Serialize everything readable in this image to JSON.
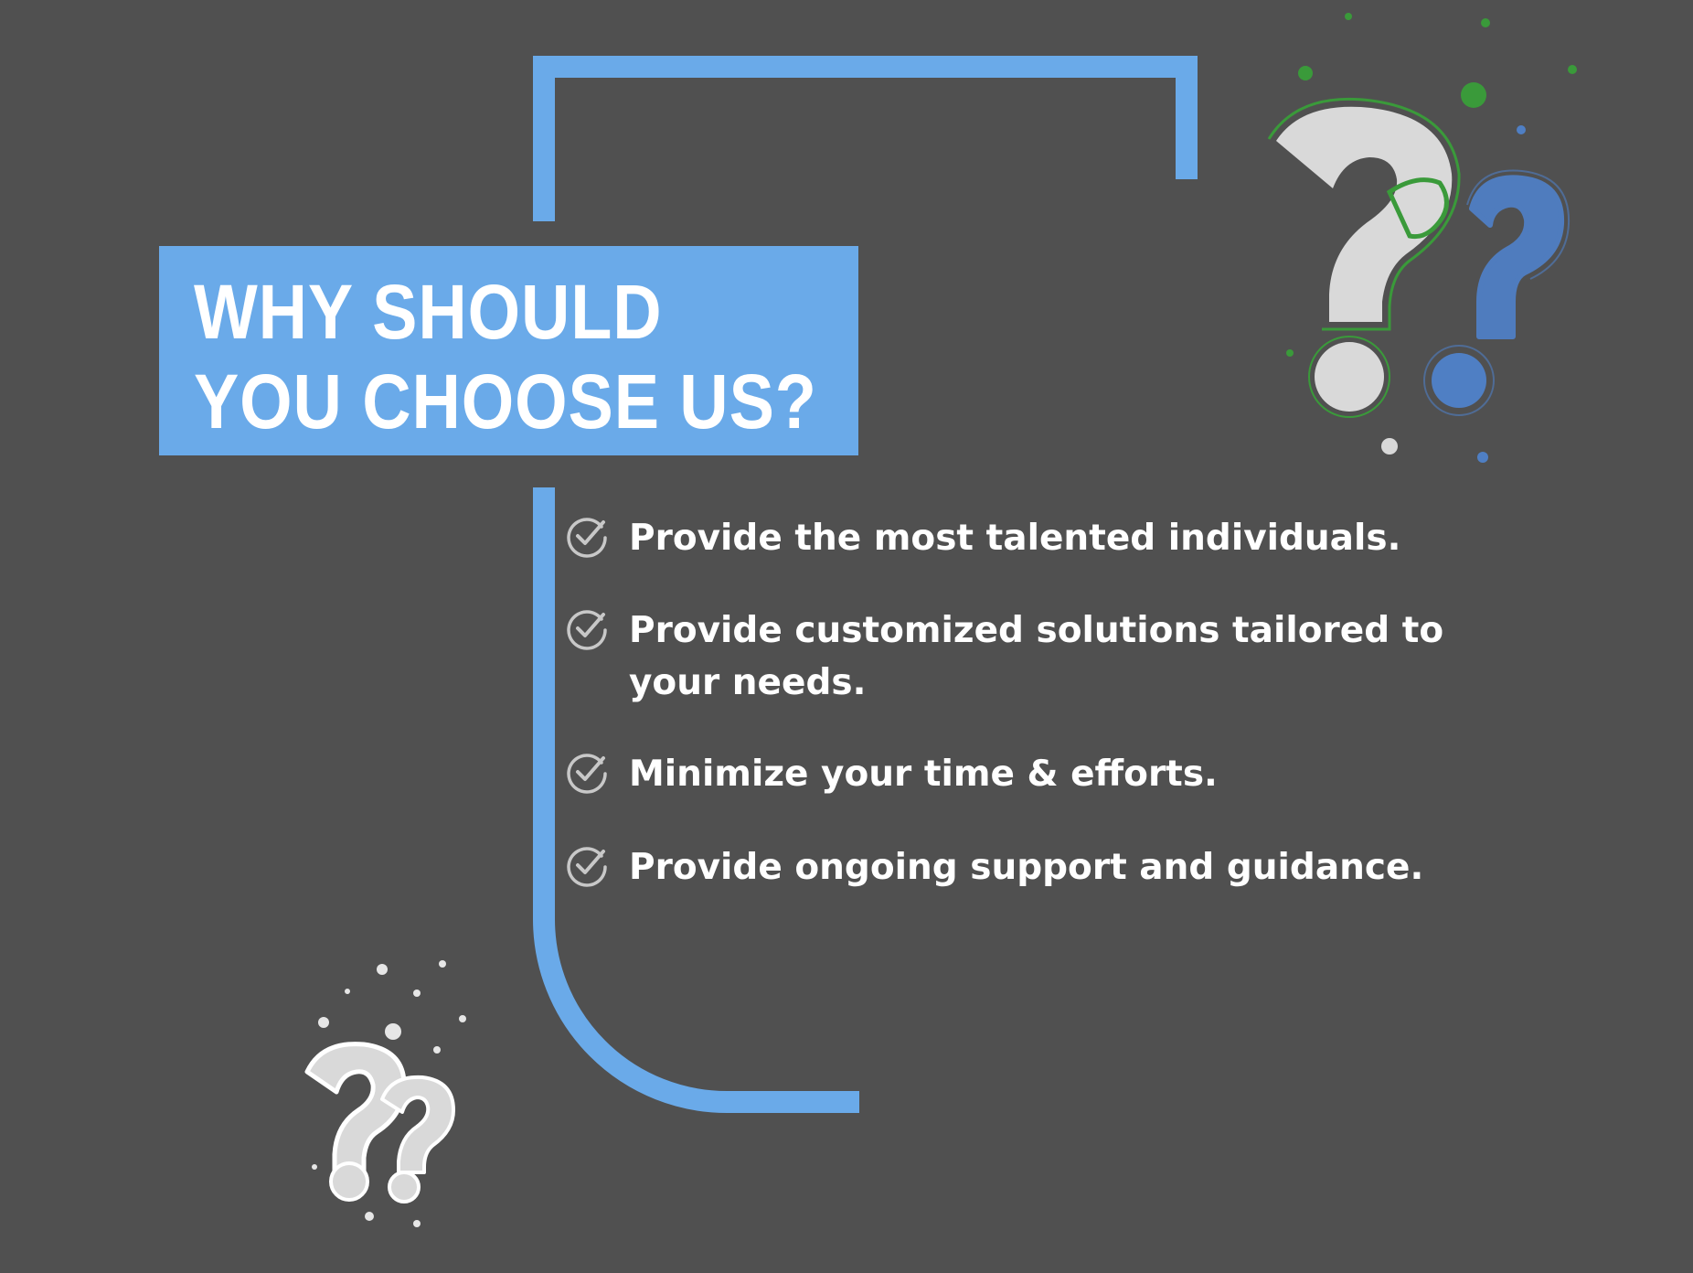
{
  "colors": {
    "background": "#505050",
    "accent_blue": "#6aaae9",
    "text": "#ffffff",
    "check_grey": "#c8c8c8",
    "qmark_grey": "#d9d9d9",
    "qmark_blue": "#4f7fc4",
    "outline_green": "#3a9a3a"
  },
  "title": {
    "line1": "WHY SHOULD",
    "line2": "YOU CHOOSE US?"
  },
  "features": [
    {
      "icon": "check-circle-icon",
      "text": "Provide the most talented individuals."
    },
    {
      "icon": "check-circle-icon",
      "text": "Provide customized solutions tailored to your  needs."
    },
    {
      "icon": "check-circle-icon",
      "text": "Minimize your time & efforts."
    },
    {
      "icon": "check-circle-icon",
      "text": "Provide ongoing support and guidance."
    }
  ],
  "decorations": {
    "top_right": "question-marks-icon",
    "bottom_left": "question-marks-icon"
  }
}
